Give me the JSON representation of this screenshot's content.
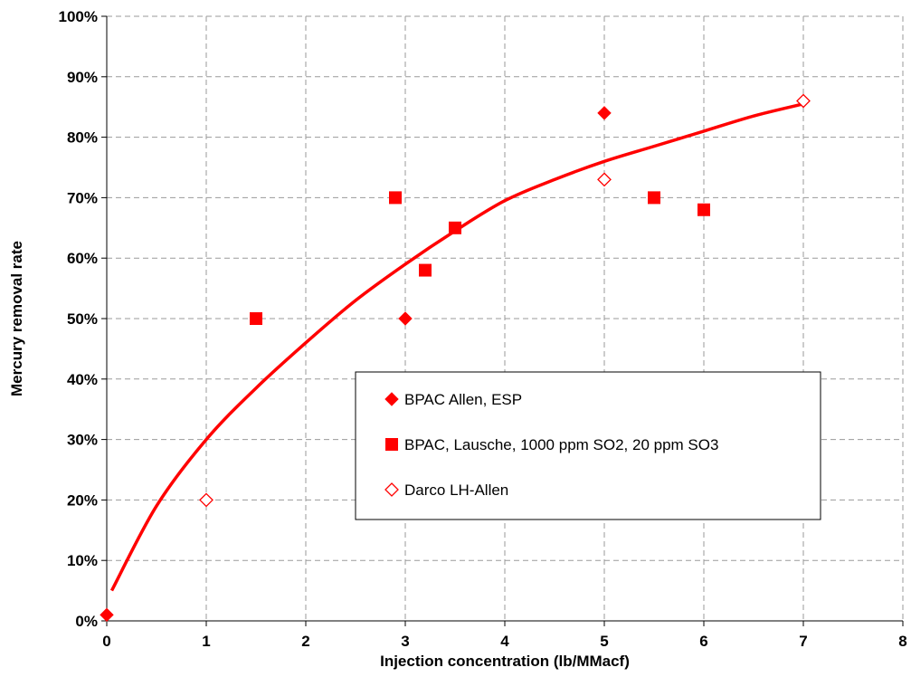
{
  "chart_data": {
    "type": "scatter",
    "title": "",
    "xlabel": "Injection concentration (lb/MMacf)",
    "ylabel": "Mercury removal rate",
    "xlim": [
      0,
      8
    ],
    "ylim": [
      0,
      100
    ],
    "x_ticks": [
      "0",
      "1",
      "2",
      "3",
      "4",
      "5",
      "6",
      "7",
      "8"
    ],
    "y_ticks": [
      "0%",
      "10%",
      "20%",
      "30%",
      "40%",
      "50%",
      "60%",
      "70%",
      "80%",
      "90%",
      "100%"
    ],
    "grid": true,
    "legend_position": "inside-lower-right",
    "series": [
      {
        "name": "BPAC Allen, ESP",
        "marker": "filled-diamond",
        "color": "#ff0000",
        "points": [
          [
            0,
            1
          ],
          [
            3,
            50
          ],
          [
            5,
            84
          ]
        ]
      },
      {
        "name": "BPAC, Lausche, 1000 ppm SO2, 20 ppm SO3",
        "marker": "filled-square",
        "color": "#ff0000",
        "points": [
          [
            1.5,
            50
          ],
          [
            2.9,
            70
          ],
          [
            3.2,
            58
          ],
          [
            3.5,
            65
          ],
          [
            5.5,
            70
          ],
          [
            6,
            68
          ]
        ]
      },
      {
        "name": "Darco LH-Allen",
        "marker": "open-diamond",
        "color": "#ff0000",
        "points": [
          [
            1,
            20
          ],
          [
            5,
            73
          ],
          [
            7,
            86
          ]
        ]
      }
    ],
    "trendline": {
      "color": "#ff0000",
      "points": [
        [
          0.05,
          5
        ],
        [
          0.5,
          19
        ],
        [
          1,
          30
        ],
        [
          1.5,
          38.5
        ],
        [
          2,
          46
        ],
        [
          2.5,
          53
        ],
        [
          3,
          59
        ],
        [
          3.5,
          64.5
        ],
        [
          4,
          69.5
        ],
        [
          4.5,
          73
        ],
        [
          5,
          76
        ],
        [
          5.5,
          78.5
        ],
        [
          6,
          81
        ],
        [
          6.5,
          83.5
        ],
        [
          7,
          85.5
        ]
      ]
    }
  }
}
